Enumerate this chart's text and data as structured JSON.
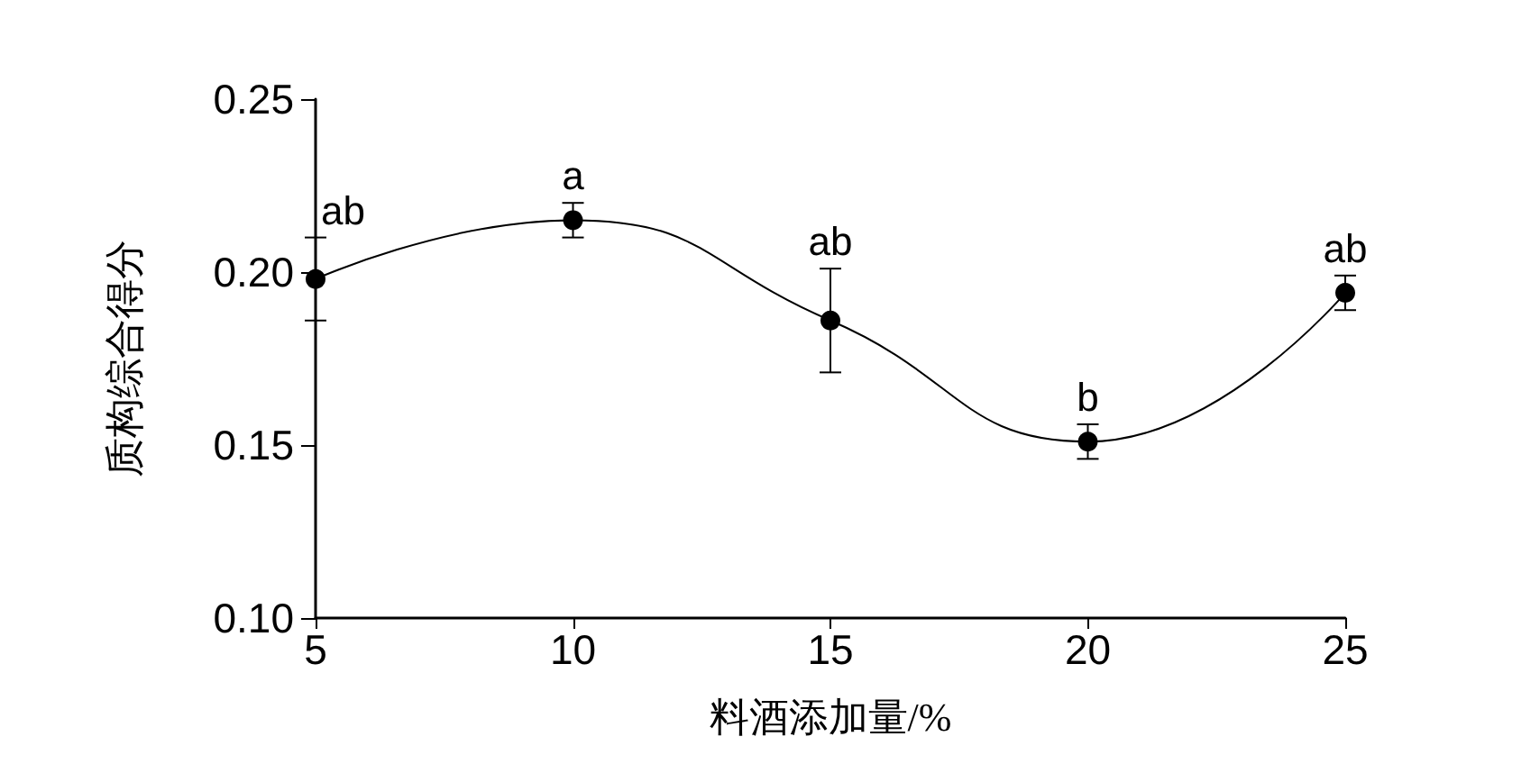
{
  "chart_data": {
    "type": "line",
    "xlabel": "料酒添加量/%",
    "ylabel": "质构综合得分",
    "x": [
      5,
      10,
      15,
      20,
      25
    ],
    "series": [
      {
        "color": "#000000",
        "values": [
          0.198,
          0.215,
          0.186,
          0.151,
          0.194
        ],
        "errors": [
          0.012,
          0.005,
          0.015,
          0.005,
          0.005
        ]
      }
    ],
    "xlim": [
      5,
      25
    ],
    "xticks": [
      5,
      10,
      15,
      20,
      25
    ],
    "ylim": [
      0.1,
      0.25
    ],
    "yticks": [
      {
        "value": 0.1,
        "label": "0.10"
      },
      {
        "value": 0.15,
        "label": "0.15"
      },
      {
        "value": 0.2,
        "label": "0.20"
      },
      {
        "value": 0.25,
        "label": "0.25"
      }
    ],
    "marker": "circle",
    "line_style": "solid",
    "grid": false,
    "annotations": [
      {
        "text": "ab",
        "x": 5,
        "y": 0.198
      },
      {
        "text": "a",
        "x": 10,
        "y": 0.215
      },
      {
        "text": "ab",
        "x": 15,
        "y": 0.186
      },
      {
        "text": "b",
        "x": 20,
        "y": 0.151
      },
      {
        "text": "ab",
        "x": 25,
        "y": 0.194
      }
    ]
  }
}
